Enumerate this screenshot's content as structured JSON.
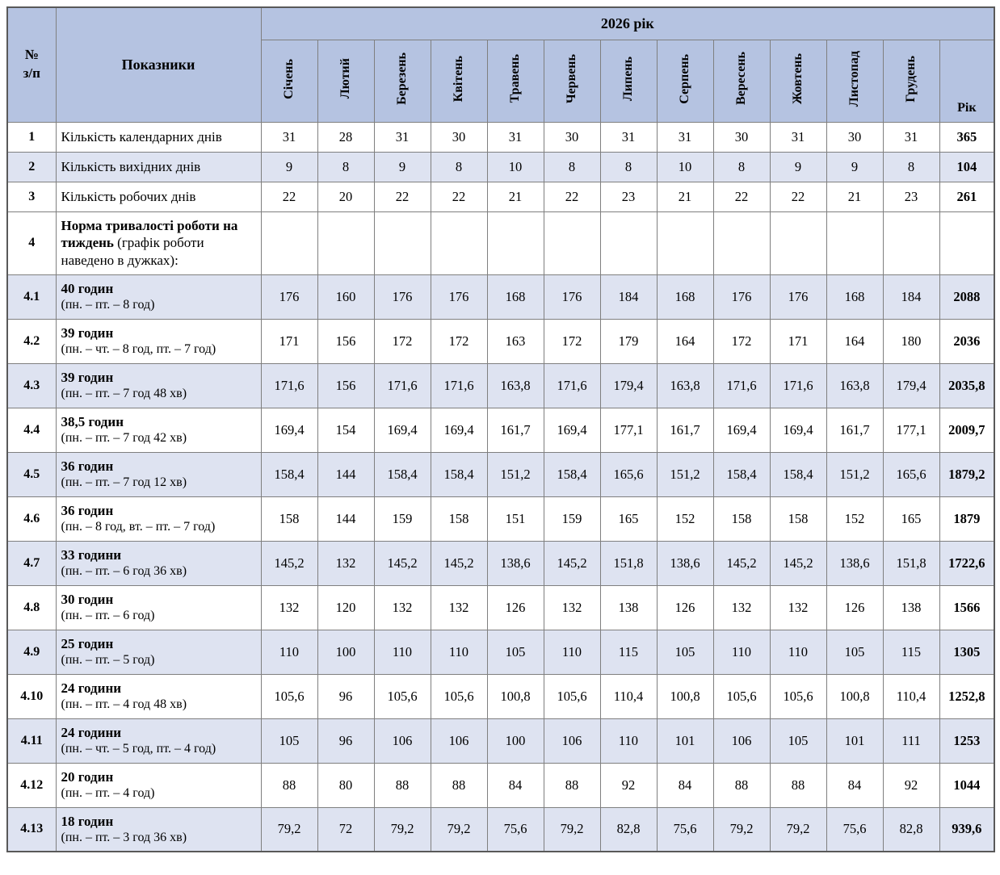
{
  "table": {
    "header": {
      "num_label": "№\nз/п",
      "indicators_label": "Показники",
      "year_group_label": "2026 рік",
      "months": [
        "Січень",
        "Лютий",
        "Березень",
        "Квітень",
        "Травень",
        "Червень",
        "Липень",
        "Серпень",
        "Вересень",
        "Жовтень",
        "Листопад",
        "Грудень"
      ],
      "year_col_label": "Рік"
    },
    "rows": [
      {
        "num": "1",
        "layout": "plain",
        "title": "",
        "label": "Кількість календарних днів",
        "values": [
          "31",
          "28",
          "31",
          "30",
          "31",
          "30",
          "31",
          "31",
          "30",
          "31",
          "30",
          "31"
        ],
        "year": "365",
        "shaded": false
      },
      {
        "num": "2",
        "layout": "plain",
        "title": "",
        "label": "Кількість вихідних днів",
        "values": [
          "9",
          "8",
          "9",
          "8",
          "10",
          "8",
          "8",
          "10",
          "8",
          "9",
          "9",
          "8"
        ],
        "year": "104",
        "shaded": true
      },
      {
        "num": "3",
        "layout": "plain",
        "title": "",
        "label": "Кількість робочих днів",
        "values": [
          "22",
          "20",
          "22",
          "22",
          "21",
          "22",
          "23",
          "21",
          "22",
          "22",
          "21",
          "23"
        ],
        "year": "261",
        "shaded": false
      },
      {
        "num": "4",
        "layout": "inline",
        "title": "Норма тривалості роботи на тиждень",
        "label": "(графік роботи наведено в дужках):",
        "values": [
          "",
          "",
          "",
          "",
          "",
          "",
          "",
          "",
          "",
          "",
          "",
          ""
        ],
        "year": "",
        "shaded": false
      },
      {
        "num": "4.1",
        "layout": "stack",
        "title": "40 годин",
        "label": "(пн. – пт. – 8 год)",
        "values": [
          "176",
          "160",
          "176",
          "176",
          "168",
          "176",
          "184",
          "168",
          "176",
          "176",
          "168",
          "184"
        ],
        "year": "2088",
        "shaded": true
      },
      {
        "num": "4.2",
        "layout": "stack",
        "title": "39 годин",
        "label": "(пн. – чт. – 8 год, пт. – 7 год)",
        "values": [
          "171",
          "156",
          "172",
          "172",
          "163",
          "172",
          "179",
          "164",
          "172",
          "171",
          "164",
          "180"
        ],
        "year": "2036",
        "shaded": false
      },
      {
        "num": "4.3",
        "layout": "stack",
        "title": "39 годин",
        "label": "(пн. – пт. – 7 год 48 хв)",
        "values": [
          "171,6",
          "156",
          "171,6",
          "171,6",
          "163,8",
          "171,6",
          "179,4",
          "163,8",
          "171,6",
          "171,6",
          "163,8",
          "179,4"
        ],
        "year": "2035,8",
        "shaded": true
      },
      {
        "num": "4.4",
        "layout": "stack",
        "title": "38,5 годин",
        "label": "(пн. – пт. – 7 год 42 хв)",
        "values": [
          "169,4",
          "154",
          "169,4",
          "169,4",
          "161,7",
          "169,4",
          "177,1",
          "161,7",
          "169,4",
          "169,4",
          "161,7",
          "177,1"
        ],
        "year": "2009,7",
        "shaded": false
      },
      {
        "num": "4.5",
        "layout": "stack",
        "title": "36 годин",
        "label": "(пн. – пт. – 7 год 12 хв)",
        "values": [
          "158,4",
          "144",
          "158,4",
          "158,4",
          "151,2",
          "158,4",
          "165,6",
          "151,2",
          "158,4",
          "158,4",
          "151,2",
          "165,6"
        ],
        "year": "1879,2",
        "shaded": true
      },
      {
        "num": "4.6",
        "layout": "stack",
        "title": "36 годин",
        "label": "(пн. – 8 год, вт. – пт. – 7 год)",
        "values": [
          "158",
          "144",
          "159",
          "158",
          "151",
          "159",
          "165",
          "152",
          "158",
          "158",
          "152",
          "165"
        ],
        "year": "1879",
        "shaded": false
      },
      {
        "num": "4.7",
        "layout": "stack",
        "title": "33 години",
        "label": "(пн. – пт. – 6 год 36 хв)",
        "values": [
          "145,2",
          "132",
          "145,2",
          "145,2",
          "138,6",
          "145,2",
          "151,8",
          "138,6",
          "145,2",
          "145,2",
          "138,6",
          "151,8"
        ],
        "year": "1722,6",
        "shaded": true
      },
      {
        "num": "4.8",
        "layout": "stack",
        "title": "30 годин",
        "label": "(пн. – пт. – 6 год)",
        "values": [
          "132",
          "120",
          "132",
          "132",
          "126",
          "132",
          "138",
          "126",
          "132",
          "132",
          "126",
          "138"
        ],
        "year": "1566",
        "shaded": false
      },
      {
        "num": "4.9",
        "layout": "stack",
        "title": "25 годин",
        "label": "(пн. – пт. – 5 год)",
        "values": [
          "110",
          "100",
          "110",
          "110",
          "105",
          "110",
          "115",
          "105",
          "110",
          "110",
          "105",
          "115"
        ],
        "year": "1305",
        "shaded": true
      },
      {
        "num": "4.10",
        "layout": "stack",
        "title": "24 години",
        "label": "(пн. – пт. – 4 год 48 хв)",
        "values": [
          "105,6",
          "96",
          "105,6",
          "105,6",
          "100,8",
          "105,6",
          "110,4",
          "100,8",
          "105,6",
          "105,6",
          "100,8",
          "110,4"
        ],
        "year": "1252,8",
        "shaded": false
      },
      {
        "num": "4.11",
        "layout": "stack",
        "title": "24 години",
        "label": "(пн. – чт. – 5 год, пт. – 4 год)",
        "values": [
          "105",
          "96",
          "106",
          "106",
          "100",
          "106",
          "110",
          "101",
          "106",
          "105",
          "101",
          "111"
        ],
        "year": "1253",
        "shaded": true
      },
      {
        "num": "4.12",
        "layout": "stack",
        "title": "20 годин",
        "label": "(пн. – пт. – 4 год)",
        "values": [
          "88",
          "80",
          "88",
          "88",
          "84",
          "88",
          "92",
          "84",
          "88",
          "88",
          "84",
          "92"
        ],
        "year": "1044",
        "shaded": false
      },
      {
        "num": "4.13",
        "layout": "stack",
        "title": "18 годин",
        "label": "(пн. – пт. – 3 год 36 хв)",
        "values": [
          "79,2",
          "72",
          "79,2",
          "79,2",
          "75,6",
          "79,2",
          "82,8",
          "75,6",
          "79,2",
          "79,2",
          "75,6",
          "82,8"
        ],
        "year": "939,6",
        "shaded": true
      }
    ]
  }
}
